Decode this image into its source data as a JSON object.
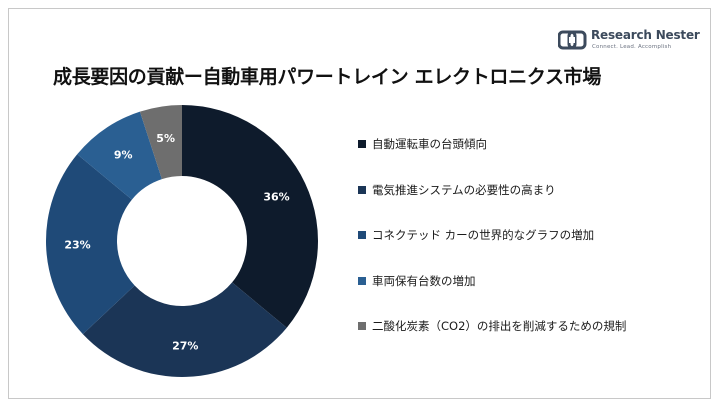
{
  "brand": {
    "name": "Research Nester",
    "tagline": "Connect. Lead. Accomplish"
  },
  "colors": {
    "background": "#ffffff",
    "border": "#c8c8c8",
    "label_text": "#ffffff"
  },
  "chart_data": {
    "type": "pie",
    "variant": "donut",
    "title": "成長要因の貢献ー自動車用パワートレイン エレクトロニクス市場",
    "legend_position": "right",
    "categories": [
      "自動運転車の台頭傾向",
      "電気推進システムの必要性の高まり",
      "コネクテッド カーの世界的なグラフの増加",
      "車両保有台数の増加",
      "二酸化炭素（CO2）の排出を削減するための規制"
    ],
    "values": [
      36,
      27,
      23,
      9,
      5
    ],
    "labels": [
      "36%",
      "27%",
      "23%",
      "9%",
      "5%"
    ],
    "colors": [
      "#0e1b2c",
      "#1b3556",
      "#1f4a78",
      "#2a5f92",
      "#6e6e6e"
    ]
  }
}
